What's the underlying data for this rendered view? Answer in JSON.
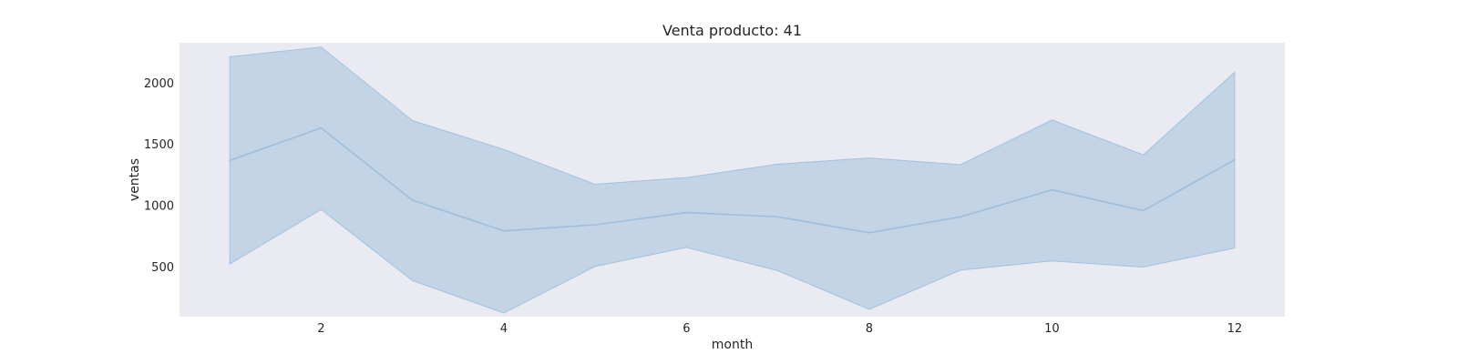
{
  "chart_data": {
    "type": "area",
    "title": "Venta producto: 41",
    "xlabel": "month",
    "ylabel": "ventas",
    "xlim": [
      0.45,
      12.55
    ],
    "ylim": [
      90,
      2325
    ],
    "xticks": [
      2,
      4,
      6,
      8,
      10,
      12
    ],
    "yticks": [
      500,
      1000,
      1500,
      2000
    ],
    "grid": false,
    "legend": "none",
    "colors": {
      "plot_background": "#eaeaf2",
      "band_fill": "#aac6df",
      "line": "#9fbedb",
      "band_edge": "#9fbedb"
    },
    "series": [
      {
        "x": [
          1,
          2,
          3,
          4,
          5,
          6,
          7,
          8,
          9,
          10,
          11,
          12
        ],
        "values": [
          1365,
          1630,
          1040,
          790,
          840,
          940,
          905,
          775,
          905,
          1125,
          955,
          1370
        ],
        "band_upper": [
          2210,
          2290,
          1690,
          1455,
          1170,
          1225,
          1335,
          1385,
          1330,
          1695,
          1410,
          2085
        ],
        "band_lower": [
          520,
          965,
          385,
          120,
          500,
          655,
          465,
          150,
          470,
          545,
          495,
          650
        ]
      }
    ]
  }
}
